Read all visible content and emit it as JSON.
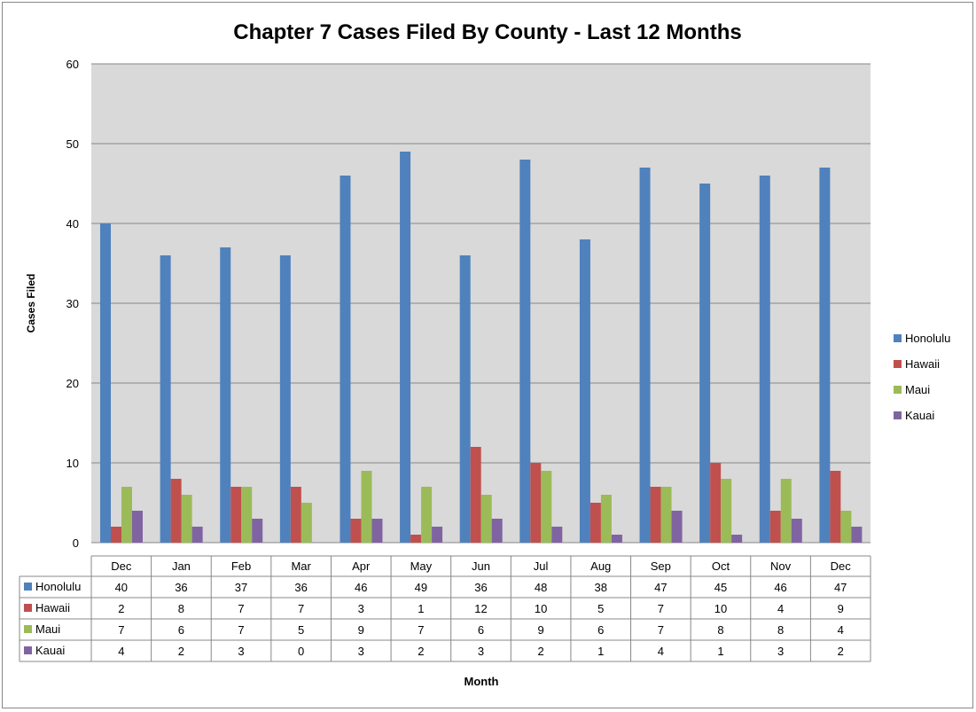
{
  "chart_data": {
    "type": "bar",
    "title": "Chapter 7 Cases Filed By County - Last 12 Months",
    "xlabel": "Month",
    "ylabel": "Cases Filed",
    "ylim": [
      0,
      60
    ],
    "yticks": [
      0,
      10,
      20,
      30,
      40,
      50,
      60
    ],
    "grid": true,
    "legend_position": "right",
    "categories": [
      "Dec",
      "Jan",
      "Feb",
      "Mar",
      "Apr",
      "May",
      "Jun",
      "Jul",
      "Aug",
      "Sep",
      "Oct",
      "Nov",
      "Dec"
    ],
    "series": [
      {
        "name": "Honolulu",
        "color": "#4F81BD",
        "values": [
          40,
          36,
          37,
          36,
          46,
          49,
          36,
          48,
          38,
          47,
          45,
          46,
          47
        ]
      },
      {
        "name": "Hawaii",
        "color": "#C0504D",
        "values": [
          2,
          8,
          7,
          7,
          3,
          1,
          12,
          10,
          5,
          7,
          10,
          4,
          9
        ]
      },
      {
        "name": "Maui",
        "color": "#9BBB59",
        "values": [
          7,
          6,
          7,
          5,
          9,
          7,
          6,
          9,
          6,
          7,
          8,
          8,
          4
        ]
      },
      {
        "name": "Kauai",
        "color": "#8064A2",
        "values": [
          4,
          2,
          3,
          0,
          3,
          2,
          3,
          2,
          1,
          4,
          1,
          3,
          2
        ]
      }
    ],
    "data_table": true
  }
}
